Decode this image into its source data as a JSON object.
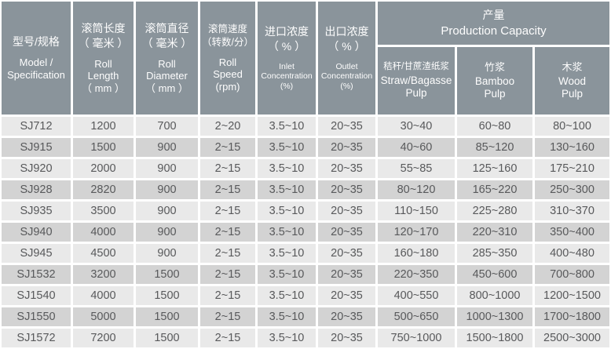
{
  "colors": {
    "header_bg": "#8a949b",
    "row_light": "#e9e9e9",
    "row_dark": "#d3d3d3",
    "header_text": "#fdfdfd",
    "cell_text": "#58595b"
  },
  "header": {
    "columns": [
      {
        "zh": "型号/规格",
        "en": "Model /\nSpecification"
      },
      {
        "zh": "滚筒长度\n（ 毫米 ）",
        "en": "Roll\nLength\n（ mm ）"
      },
      {
        "zh": "滚筒直径\n（ 毫米 ）",
        "en": "Roll\nDiameter\n（ mm ）"
      },
      {
        "zh": "滚筒速度\n（转数/分）",
        "en": "Roll\nSpeed\n(rpm)"
      },
      {
        "zh": "进口浓度\n（ % ）",
        "en": "Inlet\nConcentration\n(%)"
      },
      {
        "zh": "出口浓度\n（ % ）",
        "en": "Outlet\nConcentration\n(%)"
      }
    ],
    "capacity": {
      "zh": "产量",
      "en": "Production Capacity",
      "sub_columns": [
        {
          "zh": "秸秆/甘蔗渣纸浆",
          "en": "Straw/Bagasse\nPulp"
        },
        {
          "zh": "竹浆",
          "en": "Bamboo\nPulp"
        },
        {
          "zh": "木浆",
          "en": "Wood\nPulp"
        }
      ]
    }
  },
  "rows": [
    [
      "SJ712",
      "1200",
      "700",
      "2~20",
      "3.5~10",
      "20~35",
      "30~40",
      "60~80",
      "80~100"
    ],
    [
      "SJ915",
      "1500",
      "900",
      "2~15",
      "3.5~10",
      "20~35",
      "40~60",
      "85~120",
      "130~160"
    ],
    [
      "SJ920",
      "2000",
      "900",
      "2~15",
      "3.5~10",
      "20~35",
      "55~85",
      "125~160",
      "175~210"
    ],
    [
      "SJ928",
      "2820",
      "900",
      "2~15",
      "3.5~10",
      "20~35",
      "80~120",
      "165~220",
      "250~300"
    ],
    [
      "SJ935",
      "3500",
      "900",
      "2~15",
      "3.5~10",
      "20~35",
      "110~150",
      "225~280",
      "310~370"
    ],
    [
      "SJ940",
      "4000",
      "900",
      "2~15",
      "3.5~10",
      "20~35",
      "120~170",
      "220~310",
      "350~400"
    ],
    [
      "SJ945",
      "4500",
      "900",
      "2~15",
      "3.5~10",
      "20~35",
      "160~180",
      "285~350",
      "400~480"
    ],
    [
      "SJ1532",
      "3200",
      "1500",
      "2~15",
      "3.5~10",
      "20~35",
      "220~350",
      "450~600",
      "700~800"
    ],
    [
      "SJ1540",
      "4000",
      "1500",
      "2~15",
      "3.5~10",
      "20~35",
      "400~550",
      "800~1000",
      "1200~1500"
    ],
    [
      "SJ1550",
      "5000",
      "1500",
      "2~15",
      "3.5~10",
      "20~35",
      "500~650",
      "1000~1300",
      "1700~1800"
    ],
    [
      "SJ1572",
      "7200",
      "1500",
      "2~15",
      "3.5~10",
      "20~35",
      "750~1000",
      "1500~1800",
      "2500~3000"
    ]
  ]
}
